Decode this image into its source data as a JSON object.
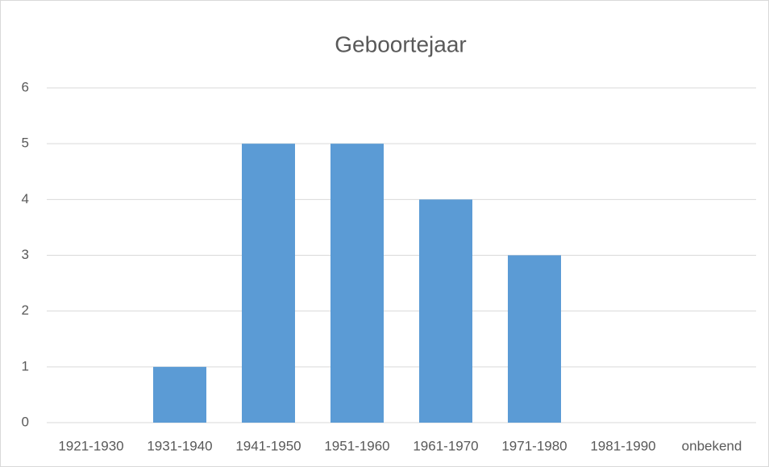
{
  "chart_data": {
    "type": "bar",
    "title": "Geboortejaar",
    "categories": [
      "1921-1930",
      "1931-1940",
      "1941-1950",
      "1951-1960",
      "1961-1970",
      "1971-1980",
      "1981-1990",
      "onbekend"
    ],
    "values": [
      0,
      1,
      5,
      5,
      4,
      3,
      0,
      0
    ],
    "color": "#5b9bd5",
    "ylim": [
      0,
      6
    ],
    "yticks": [
      0,
      1,
      2,
      3,
      4,
      5,
      6
    ],
    "grid": true
  }
}
